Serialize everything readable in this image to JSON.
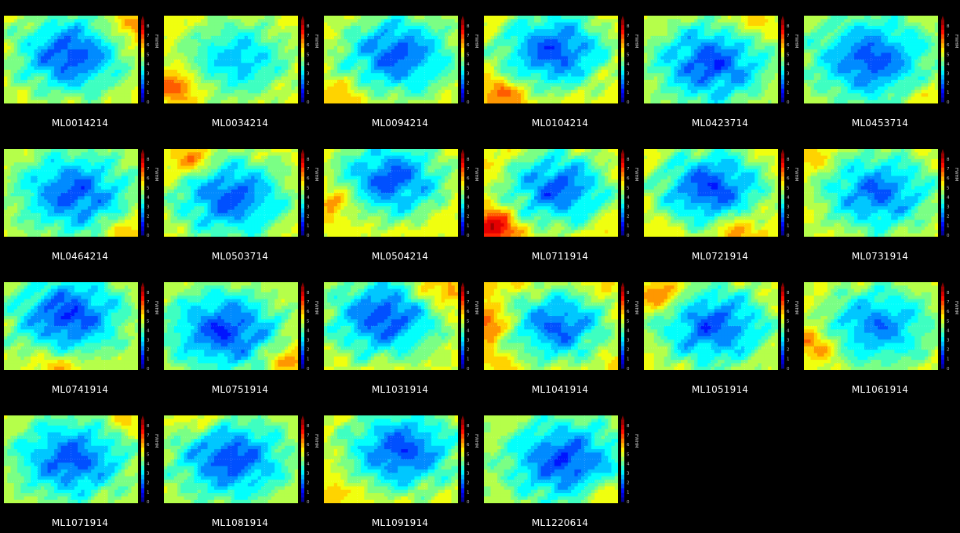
{
  "figure": {
    "colorbar_label": "FWHM",
    "colorbar_ticks": [
      "0",
      "1",
      "2",
      "3",
      "4",
      "5",
      "6",
      "7",
      "8"
    ],
    "value_range": [
      0,
      8.6
    ],
    "levels": [
      0.5,
      1,
      1.5,
      2,
      2.5,
      3,
      3.5,
      4,
      4.5,
      5,
      5.5,
      6,
      6.5,
      7,
      7.5,
      8
    ]
  },
  "chart_data": [
    {
      "type": "heatmap",
      "title": "ML0014214",
      "colorbar_label": "FWHM",
      "vrange": [
        0,
        8.6
      ],
      "min_value": 1.5,
      "min_center": [
        0.5,
        0.45
      ],
      "edge_value": 5.0,
      "hot_spot": [
        0.95,
        0.15
      ],
      "hot_value": 6.5
    },
    {
      "type": "heatmap",
      "title": "ML0034214",
      "colorbar_label": "FWHM",
      "vrange": [
        0,
        8.6
      ],
      "min_value": 2.6,
      "min_center": [
        0.55,
        0.5
      ],
      "edge_value": 5.2,
      "hot_spot": [
        0.1,
        0.8
      ],
      "hot_value": 7.0
    },
    {
      "type": "heatmap",
      "title": "ML0094214",
      "colorbar_label": "FWHM",
      "vrange": [
        0,
        8.6
      ],
      "min_value": 1.6,
      "min_center": [
        0.55,
        0.45
      ],
      "edge_value": 5.0,
      "hot_spot": [
        0.15,
        0.9
      ],
      "hot_value": 6.0
    },
    {
      "type": "heatmap",
      "title": "ML0104214",
      "colorbar_label": "FWHM",
      "vrange": [
        0,
        8.6
      ],
      "min_value": 1.5,
      "min_center": [
        0.52,
        0.4
      ],
      "edge_value": 5.2,
      "hot_spot": [
        0.15,
        0.9
      ],
      "hot_value": 6.6
    },
    {
      "type": "heatmap",
      "title": "ML0423714",
      "colorbar_label": "FWHM",
      "vrange": [
        0,
        8.6
      ],
      "min_value": 1.5,
      "min_center": [
        0.5,
        0.55
      ],
      "edge_value": 4.8,
      "hot_spot": [
        0.8,
        0.1
      ],
      "hot_value": 5.8
    },
    {
      "type": "heatmap",
      "title": "ML0453714",
      "colorbar_label": "FWHM",
      "vrange": [
        0,
        8.6
      ],
      "min_value": 1.6,
      "min_center": [
        0.5,
        0.5
      ],
      "edge_value": 4.6,
      "hot_spot": [
        0.9,
        0.9
      ],
      "hot_value": 5.4
    },
    {
      "type": "heatmap",
      "title": "ML0464214",
      "colorbar_label": "FWHM",
      "vrange": [
        0,
        8.6
      ],
      "min_value": 1.6,
      "min_center": [
        0.52,
        0.5
      ],
      "edge_value": 4.8,
      "hot_spot": [
        0.95,
        0.95
      ],
      "hot_value": 6.0
    },
    {
      "type": "heatmap",
      "title": "ML0503714",
      "colorbar_label": "FWHM",
      "vrange": [
        0,
        8.6
      ],
      "min_value": 1.6,
      "min_center": [
        0.5,
        0.55
      ],
      "edge_value": 5.0,
      "hot_spot": [
        0.2,
        0.15
      ],
      "hot_value": 6.6
    },
    {
      "type": "heatmap",
      "title": "ML0504214",
      "colorbar_label": "FWHM",
      "vrange": [
        0,
        8.6
      ],
      "min_value": 1.6,
      "min_center": [
        0.5,
        0.35
      ],
      "edge_value": 5.2,
      "hot_spot": [
        0.1,
        0.6
      ],
      "hot_value": 6.6
    },
    {
      "type": "heatmap",
      "title": "ML0711914",
      "colorbar_label": "FWHM",
      "vrange": [
        0,
        8.6
      ],
      "min_value": 1.6,
      "min_center": [
        0.55,
        0.45
      ],
      "edge_value": 5.4,
      "hot_spot": [
        0.08,
        0.88
      ],
      "hot_value": 8.0
    },
    {
      "type": "heatmap",
      "title": "ML0721914",
      "colorbar_label": "FWHM",
      "vrange": [
        0,
        8.6
      ],
      "min_value": 1.4,
      "min_center": [
        0.5,
        0.45
      ],
      "edge_value": 5.2,
      "hot_spot": [
        0.7,
        0.9
      ],
      "hot_value": 6.6
    },
    {
      "type": "heatmap",
      "title": "ML0731914",
      "colorbar_label": "FWHM",
      "vrange": [
        0,
        8.6
      ],
      "min_value": 1.8,
      "min_center": [
        0.55,
        0.5
      ],
      "edge_value": 5.0,
      "hot_spot": [
        0.05,
        0.1
      ],
      "hot_value": 5.8
    },
    {
      "type": "heatmap",
      "title": "ML0741914",
      "colorbar_label": "FWHM",
      "vrange": [
        0,
        8.6
      ],
      "min_value": 1.4,
      "min_center": [
        0.48,
        0.38
      ],
      "edge_value": 4.8,
      "hot_spot": [
        0.4,
        0.95
      ],
      "hot_value": 6.0
    },
    {
      "type": "heatmap",
      "title": "ML0751914",
      "colorbar_label": "FWHM",
      "vrange": [
        0,
        8.6
      ],
      "min_value": 1.4,
      "min_center": [
        0.45,
        0.55
      ],
      "edge_value": 4.8,
      "hot_spot": [
        0.95,
        0.9
      ],
      "hot_value": 6.2
    },
    {
      "type": "heatmap",
      "title": "ML1031914",
      "colorbar_label": "FWHM",
      "vrange": [
        0,
        8.6
      ],
      "min_value": 1.5,
      "min_center": [
        0.45,
        0.4
      ],
      "edge_value": 5.0,
      "hot_spot": [
        0.85,
        0.1
      ],
      "hot_value": 6.6
    },
    {
      "type": "heatmap",
      "title": "ML1041914",
      "colorbar_label": "FWHM",
      "vrange": [
        0,
        8.6
      ],
      "min_value": 1.7,
      "min_center": [
        0.55,
        0.5
      ],
      "edge_value": 5.6,
      "hot_spot": [
        0.05,
        0.5
      ],
      "hot_value": 7.0
    },
    {
      "type": "heatmap",
      "title": "ML1051914",
      "colorbar_label": "FWHM",
      "vrange": [
        0,
        8.6
      ],
      "min_value": 1.6,
      "min_center": [
        0.52,
        0.5
      ],
      "edge_value": 5.0,
      "hot_spot": [
        0.15,
        0.15
      ],
      "hot_value": 6.6
    },
    {
      "type": "heatmap",
      "title": "ML1061914",
      "colorbar_label": "FWHM",
      "vrange": [
        0,
        8.6
      ],
      "min_value": 2.0,
      "min_center": [
        0.55,
        0.5
      ],
      "edge_value": 5.0,
      "hot_spot": [
        0.08,
        0.7
      ],
      "hot_value": 6.6
    },
    {
      "type": "heatmap",
      "title": "ML1071914",
      "colorbar_label": "FWHM",
      "vrange": [
        0,
        8.6
      ],
      "min_value": 1.6,
      "min_center": [
        0.5,
        0.5
      ],
      "edge_value": 4.8,
      "hot_spot": [
        0.9,
        0.05
      ],
      "hot_value": 5.6
    },
    {
      "type": "heatmap",
      "title": "ML1081914",
      "colorbar_label": "FWHM",
      "vrange": [
        0,
        8.6
      ],
      "min_value": 1.5,
      "min_center": [
        0.5,
        0.5
      ],
      "edge_value": 4.8,
      "hot_spot": [
        0.3,
        0.05
      ],
      "hot_value": 5.8
    },
    {
      "type": "heatmap",
      "title": "ML1091914",
      "colorbar_label": "FWHM",
      "vrange": [
        0,
        8.6
      ],
      "min_value": 1.5,
      "min_center": [
        0.58,
        0.4
      ],
      "edge_value": 5.0,
      "hot_spot": [
        0.1,
        0.9
      ],
      "hot_value": 5.8
    },
    {
      "type": "heatmap",
      "title": "ML1220614",
      "colorbar_label": "FWHM",
      "vrange": [
        0,
        8.6
      ],
      "min_value": 1.5,
      "min_center": [
        0.6,
        0.52
      ],
      "edge_value": 4.6,
      "hot_spot": [
        0.9,
        0.9
      ],
      "hot_value": 5.8
    }
  ]
}
